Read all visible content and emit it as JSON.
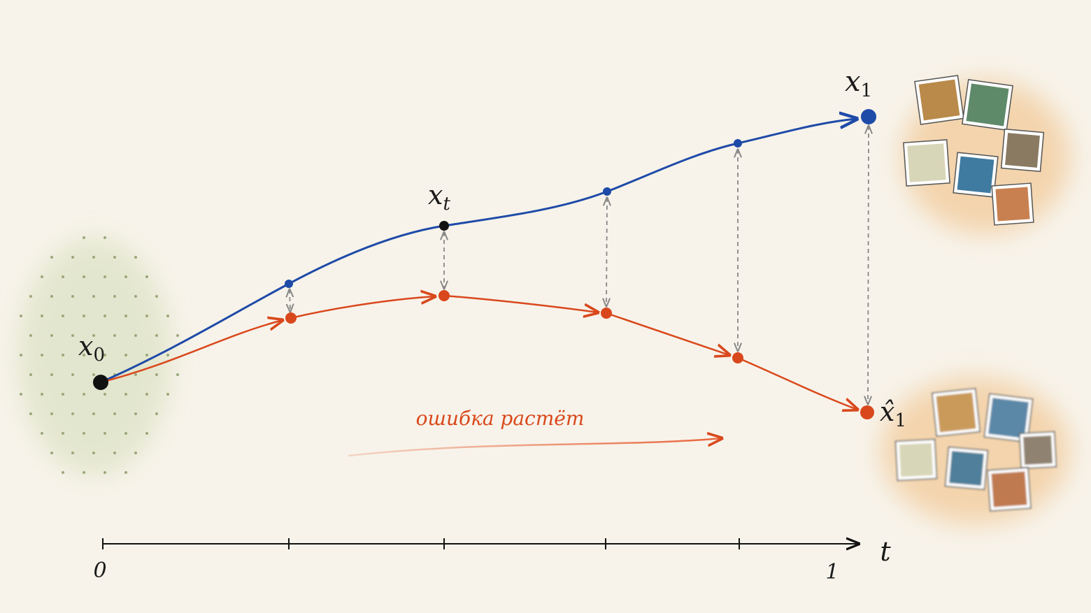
{
  "labels": {
    "start": {
      "main": "x",
      "sub": "0"
    },
    "middle": {
      "main": "x",
      "sub": "t"
    },
    "target": {
      "main": "x",
      "sub": "1"
    },
    "predicted": {
      "main": "x̂",
      "sub": "1"
    }
  },
  "annotation": "ошибка растёт",
  "axis": {
    "label": "t",
    "start": "0",
    "end": "1"
  }
}
